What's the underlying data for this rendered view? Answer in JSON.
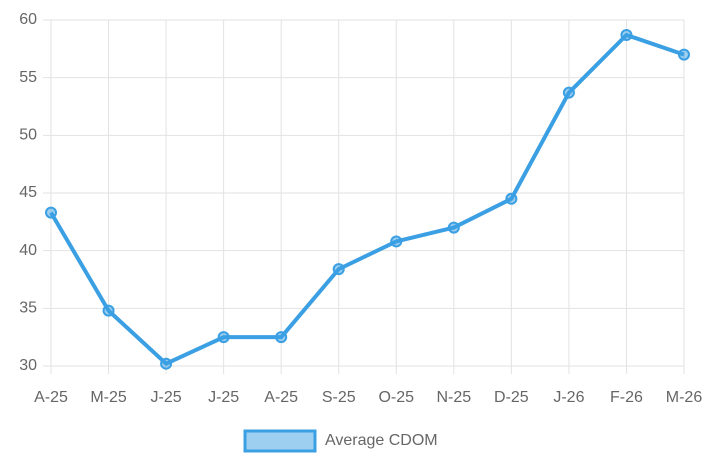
{
  "chart_data": {
    "type": "line",
    "categories": [
      "A-25",
      "M-25",
      "J-25",
      "J-25",
      "A-25",
      "S-25",
      "O-25",
      "N-25",
      "D-25",
      "J-26",
      "F-26",
      "M-26"
    ],
    "series": [
      {
        "name": "Average CDOM",
        "color": "#3b9fe3",
        "values": [
          43.3,
          34.8,
          30.2,
          32.5,
          32.5,
          38.4,
          40.8,
          42.0,
          44.5,
          53.7,
          58.7,
          57.0
        ]
      }
    ],
    "ylim": [
      30,
      60
    ],
    "yticks": [
      30,
      35,
      40,
      45,
      50,
      55,
      60
    ],
    "grid": true,
    "legend": "bottom"
  }
}
